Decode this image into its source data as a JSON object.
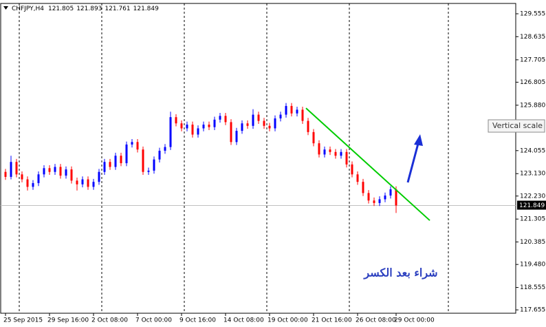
{
  "chart_data": {
    "type": "candlestick",
    "header": {
      "symbol": "CHFJPY,H4",
      "open": 121.805,
      "high": 121.893,
      "low": 121.761,
      "close": 121.849
    },
    "categories": [
      "25 Sep 2015",
      null,
      null,
      null,
      null,
      null,
      null,
      null,
      "29 Sep 16:00",
      null,
      null,
      null,
      null,
      null,
      null,
      null,
      "2 Oct 08:00",
      null,
      null,
      null,
      null,
      null,
      null,
      null,
      "7 Oct 00:00",
      null,
      null,
      null,
      null,
      null,
      null,
      null,
      "9 Oct 16:00",
      null,
      null,
      null,
      null,
      null,
      null,
      null,
      "14 Oct 08:00",
      null,
      null,
      null,
      null,
      null,
      null,
      null,
      "19 Oct 00:00",
      null,
      null,
      null,
      null,
      null,
      null,
      null,
      "21 Oct 16:00",
      null,
      null,
      null,
      null,
      null,
      null,
      null,
      "26 Oct 08:00",
      null,
      null,
      null,
      null,
      null,
      null,
      "29 Oct 00:00"
    ],
    "open": [
      123.2,
      123.0,
      123.6,
      123.1,
      122.9,
      122.6,
      122.75,
      123.1,
      123.35,
      123.2,
      123.4,
      123.05,
      123.3,
      122.85,
      122.7,
      122.9,
      122.6,
      122.8,
      123.2,
      123.6,
      123.4,
      123.85,
      123.55,
      124.3,
      124.4,
      124.1,
      123.2,
      123.25,
      123.7,
      124.05,
      124.2,
      125.4,
      125.15,
      124.95,
      125.1,
      124.7,
      124.95,
      125.1,
      125.0,
      125.3,
      125.45,
      125.2,
      124.4,
      124.85,
      125.15,
      125.05,
      125.5,
      125.25,
      125.05,
      124.95,
      125.35,
      125.5,
      125.85,
      125.55,
      125.7,
      125.25,
      124.8,
      124.35,
      123.9,
      124.1,
      124.0,
      123.85,
      124.0,
      123.5,
      123.1,
      122.8,
      122.35,
      122.05,
      121.95,
      122.1,
      122.25,
      122.5
    ],
    "high": [
      123.32,
      123.85,
      123.72,
      123.22,
      123.02,
      122.87,
      123.22,
      123.47,
      123.47,
      123.52,
      123.52,
      123.42,
      123.42,
      122.97,
      123.02,
      123.02,
      122.92,
      123.32,
      123.72,
      123.72,
      123.97,
      123.97,
      124.42,
      124.52,
      124.52,
      124.22,
      123.37,
      123.82,
      124.17,
      124.32,
      125.62,
      125.52,
      125.27,
      125.22,
      125.22,
      125.07,
      125.22,
      125.22,
      125.42,
      125.57,
      125.57,
      125.32,
      124.97,
      125.27,
      125.27,
      125.72,
      125.62,
      125.37,
      125.17,
      125.47,
      125.62,
      125.97,
      125.97,
      125.82,
      125.82,
      125.37,
      124.92,
      124.47,
      124.22,
      124.22,
      124.12,
      124.12,
      124.12,
      123.62,
      123.22,
      122.92,
      122.47,
      122.17,
      122.22,
      122.37,
      122.62,
      122.62
    ],
    "low": [
      122.88,
      122.9,
      122.98,
      122.78,
      122.45,
      122.48,
      122.63,
      122.98,
      123.08,
      123.08,
      122.93,
      122.93,
      122.73,
      122.45,
      122.58,
      122.48,
      122.48,
      122.68,
      123.08,
      123.28,
      123.28,
      123.43,
      123.43,
      124.18,
      123.98,
      123.08,
      123.08,
      123.13,
      123.58,
      123.93,
      124.08,
      125.03,
      124.83,
      124.83,
      124.58,
      124.58,
      124.83,
      124.88,
      124.88,
      125.18,
      125.08,
      124.28,
      124.28,
      124.73,
      124.93,
      124.93,
      125.13,
      124.93,
      124.83,
      124.83,
      125.23,
      125.38,
      125.43,
      125.43,
      125.13,
      124.68,
      124.23,
      123.78,
      123.78,
      123.88,
      123.73,
      123.73,
      123.38,
      122.98,
      122.68,
      122.23,
      121.93,
      121.83,
      121.83,
      121.98,
      122.13,
      121.55
    ],
    "close": [
      123.0,
      123.6,
      123.1,
      122.9,
      122.6,
      122.75,
      123.1,
      123.35,
      123.2,
      123.4,
      123.05,
      123.3,
      122.85,
      122.7,
      122.9,
      122.6,
      122.8,
      123.2,
      123.6,
      123.4,
      123.85,
      123.55,
      124.3,
      124.4,
      124.1,
      123.2,
      123.25,
      123.7,
      124.05,
      124.2,
      125.4,
      125.15,
      124.95,
      125.1,
      124.7,
      124.95,
      125.1,
      125.0,
      125.3,
      125.45,
      125.2,
      124.4,
      124.85,
      125.15,
      125.05,
      125.5,
      125.25,
      125.05,
      124.95,
      125.35,
      125.5,
      125.85,
      125.55,
      125.7,
      125.25,
      124.8,
      124.35,
      123.9,
      124.1,
      124.0,
      123.85,
      124.0,
      123.5,
      123.1,
      122.8,
      122.35,
      122.05,
      121.95,
      122.1,
      122.25,
      122.5,
      121.85
    ],
    "up_color": "#0000ff",
    "down_color": "#ff0000",
    "trendline_color": "#00cc00",
    "trendline": [
      125.76,
      121.25
    ],
    "ylim": [
      117.52,
      129.97
    ],
    "yticks": [
      129.555,
      128.635,
      127.705,
      126.805,
      {
        "value": 125.88,
        "label": "125.880"
      },
      124.055,
      {
        "value": 123.13,
        "label": "123.130"
      },
      {
        "value": 122.23,
        "label": "122.230"
      },
      121.305,
      120.385,
      {
        "value": 119.48,
        "label": "119.480"
      },
      118.555,
      117.655
    ],
    "annotation": "شراء بعد الكسر",
    "tooltip": "Vertical scale",
    "grid": true
  }
}
